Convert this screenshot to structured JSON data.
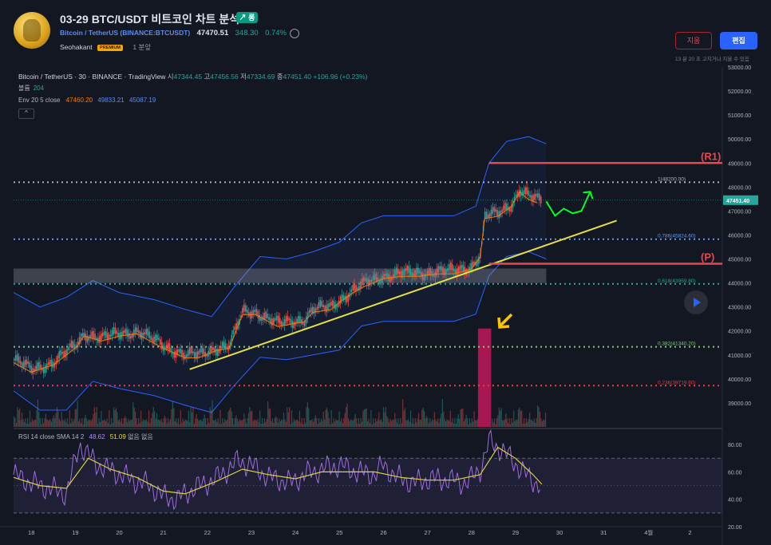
{
  "header": {
    "title": "03-29 BTC/USDT 비트코인 차트 분석",
    "badge": "↗ 롱",
    "symbol_link": "Bitcoin / TetherUS",
    "symbol_exchange": "(BINANCE:BTCUSDT)",
    "price": "47470.51",
    "change": "348.30",
    "change_pct": "0.74%",
    "author": "Seohakant",
    "premium": "PREMIUM",
    "time_ago": "1 분앞",
    "delete_label": "지움",
    "edit_label": "편집",
    "edit_note": "13 분 20 초 고치거나 지울 수 있음"
  },
  "legend": {
    "symbol": "Bitcoin / TetherUS · 30 · BINANCE · TradingView",
    "open_k": "시",
    "open": "47344.45",
    "high_k": "고",
    "high": "47456.56",
    "low_k": "저",
    "low": "47334.69",
    "close_k": "종",
    "close": "47451.40",
    "chg": "+106.96 (+0.23%)",
    "volume_label": "볼륨",
    "volume": "204",
    "env_label": "Env 20 5 close",
    "env_mid": "47460.20",
    "env_upper": "49833.21",
    "env_lower": "45087.19",
    "collapse": "^"
  },
  "rsi": {
    "label": "RSI 14 close SMA 14 2",
    "rsi": "48.62",
    "sma": "51.09",
    "extra": "없음 없음"
  },
  "colors": {
    "background": "#131722",
    "up": "#26a69a",
    "down": "#ef5350",
    "band": "#2962ff",
    "trendline": "#e4e03f",
    "resistance": "#e8474d",
    "forecast": "#00ff22",
    "rsi": "#9c6ddd",
    "rsi_sma": "#d8d23c"
  },
  "chart_data": {
    "type": "candlestick",
    "symbol": "BTCUSDT",
    "interval": "30",
    "price_axis": {
      "min": 38000,
      "max": 53000,
      "ticks": [
        53000,
        52000,
        51000,
        50000,
        49000,
        48000,
        47000,
        46000,
        45000,
        44000,
        43000,
        42000,
        41000,
        40000,
        39000
      ],
      "current": 47451.4
    },
    "time_axis": {
      "ticks": [
        "18",
        "19",
        "20",
        "21",
        "22",
        "23",
        "24",
        "25",
        "26",
        "27",
        "28",
        "29",
        "30",
        "31",
        "4월",
        "2"
      ]
    },
    "price_path": [
      [
        17.6,
        40800
      ],
      [
        18.0,
        40400
      ],
      [
        18.5,
        40700
      ],
      [
        19.0,
        41400
      ],
      [
        19.2,
        41900
      ],
      [
        19.6,
        41700
      ],
      [
        20.0,
        41900
      ],
      [
        20.4,
        42000
      ],
      [
        20.8,
        41600
      ],
      [
        21.0,
        41400
      ],
      [
        21.5,
        41000
      ],
      [
        21.8,
        41000
      ],
      [
        22.2,
        41300
      ],
      [
        22.5,
        41400
      ],
      [
        22.8,
        42800
      ],
      [
        23.1,
        42800
      ],
      [
        23.4,
        42500
      ],
      [
        23.6,
        42300
      ],
      [
        23.9,
        42400
      ],
      [
        24.2,
        42500
      ],
      [
        24.4,
        42900
      ],
      [
        24.8,
        43000
      ],
      [
        25.0,
        43300
      ],
      [
        25.3,
        43700
      ],
      [
        25.6,
        44000
      ],
      [
        26.0,
        44300
      ],
      [
        26.4,
        44400
      ],
      [
        26.8,
        44400
      ],
      [
        27.2,
        44500
      ],
      [
        27.6,
        44500
      ],
      [
        28.0,
        44700
      ],
      [
        28.2,
        45200
      ],
      [
        28.3,
        46800
      ],
      [
        28.6,
        46900
      ],
      [
        28.9,
        47300
      ],
      [
        29.1,
        47900
      ],
      [
        29.3,
        47600
      ],
      [
        29.5,
        47451
      ]
    ],
    "forecast_path": [
      [
        29.7,
        47400
      ],
      [
        29.9,
        46800
      ],
      [
        30.1,
        47100
      ],
      [
        30.3,
        46900
      ],
      [
        30.5,
        47000
      ],
      [
        30.7,
        47800
      ]
    ],
    "envelope": {
      "upper": [
        [
          17.6,
          43600
        ],
        [
          18.2,
          43000
        ],
        [
          18.8,
          43400
        ],
        [
          19.4,
          44100
        ],
        [
          20.0,
          43600
        ],
        [
          20.8,
          43300
        ],
        [
          21.5,
          42900
        ],
        [
          22.1,
          42600
        ],
        [
          22.6,
          43800
        ],
        [
          23.2,
          45100
        ],
        [
          23.8,
          45000
        ],
        [
          24.4,
          45300
        ],
        [
          25.0,
          45700
        ],
        [
          25.5,
          46500
        ],
        [
          26.0,
          46800
        ],
        [
          26.8,
          46800
        ],
        [
          27.6,
          46800
        ],
        [
          28.1,
          47200
        ],
        [
          28.4,
          49000
        ],
        [
          28.8,
          49900
        ],
        [
          29.3,
          50100
        ],
        [
          29.7,
          49800
        ]
      ],
      "lower": [
        [
          17.6,
          39500
        ],
        [
          18.2,
          38700
        ],
        [
          18.8,
          38700
        ],
        [
          19.4,
          39900
        ],
        [
          20.0,
          39600
        ],
        [
          20.8,
          39300
        ],
        [
          21.5,
          38900
        ],
        [
          22.1,
          38600
        ],
        [
          22.6,
          39700
        ],
        [
          23.2,
          40900
        ],
        [
          23.8,
          40800
        ],
        [
          24.4,
          41000
        ],
        [
          25.0,
          41200
        ],
        [
          25.5,
          42200
        ],
        [
          26.0,
          42400
        ],
        [
          26.8,
          42400
        ],
        [
          27.6,
          42400
        ],
        [
          28.1,
          42700
        ],
        [
          28.4,
          44300
        ],
        [
          28.8,
          45100
        ],
        [
          29.3,
          45300
        ],
        [
          29.7,
          45000
        ]
      ]
    },
    "levels": [
      {
        "name": "1(48200.00)",
        "price": 48200,
        "color": "#b2b5be"
      },
      {
        "name": "0.786(45824.60)",
        "price": 45824.6,
        "color": "#5b9cf6"
      },
      {
        "name": "0.618(43959.80)",
        "price": 43959.8,
        "color": "#22ab94"
      },
      {
        "name": "0.382(41340.20)",
        "price": 41340.2,
        "color": "#81c784"
      },
      {
        "name": "0.236(39719.60)",
        "price": 39719.6,
        "color": "#f23645"
      }
    ],
    "resistance": [
      {
        "label": "(R1)",
        "price": 49000
      },
      {
        "label": "(P)",
        "price": 44800
      }
    ],
    "zone": {
      "from": 44000,
      "to": 44600
    },
    "trendline": [
      [
        21.6,
        40400
      ],
      [
        31.3,
        46600
      ]
    ],
    "rsi_axis": {
      "min": 20,
      "max": 90,
      "ticks": [
        80.0,
        60.0,
        40.0,
        20.0
      ],
      "bands": [
        70,
        30
      ]
    },
    "rsi_path": [
      [
        17.6,
        58
      ],
      [
        18.0,
        52
      ],
      [
        18.4,
        48
      ],
      [
        18.8,
        44
      ],
      [
        19.1,
        80
      ],
      [
        19.5,
        65
      ],
      [
        19.9,
        60
      ],
      [
        20.3,
        54
      ],
      [
        20.7,
        50
      ],
      [
        21.0,
        42
      ],
      [
        21.3,
        40
      ],
      [
        21.7,
        48
      ],
      [
        22.2,
        55
      ],
      [
        22.7,
        68
      ],
      [
        23.0,
        65
      ],
      [
        23.4,
        56
      ],
      [
        23.9,
        52
      ],
      [
        24.2,
        58
      ],
      [
        24.6,
        62
      ],
      [
        25.0,
        65
      ],
      [
        25.4,
        60
      ],
      [
        25.8,
        58
      ],
      [
        26.0,
        65
      ],
      [
        26.3,
        56
      ],
      [
        26.7,
        52
      ],
      [
        27.1,
        55
      ],
      [
        27.5,
        54
      ],
      [
        27.9,
        52
      ],
      [
        28.2,
        62
      ],
      [
        28.4,
        82
      ],
      [
        28.7,
        76
      ],
      [
        29.0,
        66
      ],
      [
        29.3,
        56
      ],
      [
        29.6,
        49
      ]
    ],
    "rsi_sma_path": [
      [
        17.6,
        56
      ],
      [
        18.2,
        50
      ],
      [
        18.8,
        48
      ],
      [
        19.3,
        70
      ],
      [
        19.8,
        62
      ],
      [
        20.4,
        56
      ],
      [
        21.0,
        46
      ],
      [
        21.5,
        44
      ],
      [
        22.2,
        53
      ],
      [
        22.8,
        62
      ],
      [
        23.4,
        58
      ],
      [
        24.0,
        55
      ],
      [
        24.6,
        60
      ],
      [
        25.2,
        60
      ],
      [
        25.8,
        60
      ],
      [
        26.4,
        56
      ],
      [
        27.0,
        54
      ],
      [
        27.6,
        54
      ],
      [
        28.2,
        58
      ],
      [
        28.6,
        78
      ],
      [
        29.0,
        70
      ],
      [
        29.4,
        58
      ],
      [
        29.6,
        51
      ]
    ],
    "rsi_current": 48.62,
    "rsi_sma_current": 51.09
  }
}
